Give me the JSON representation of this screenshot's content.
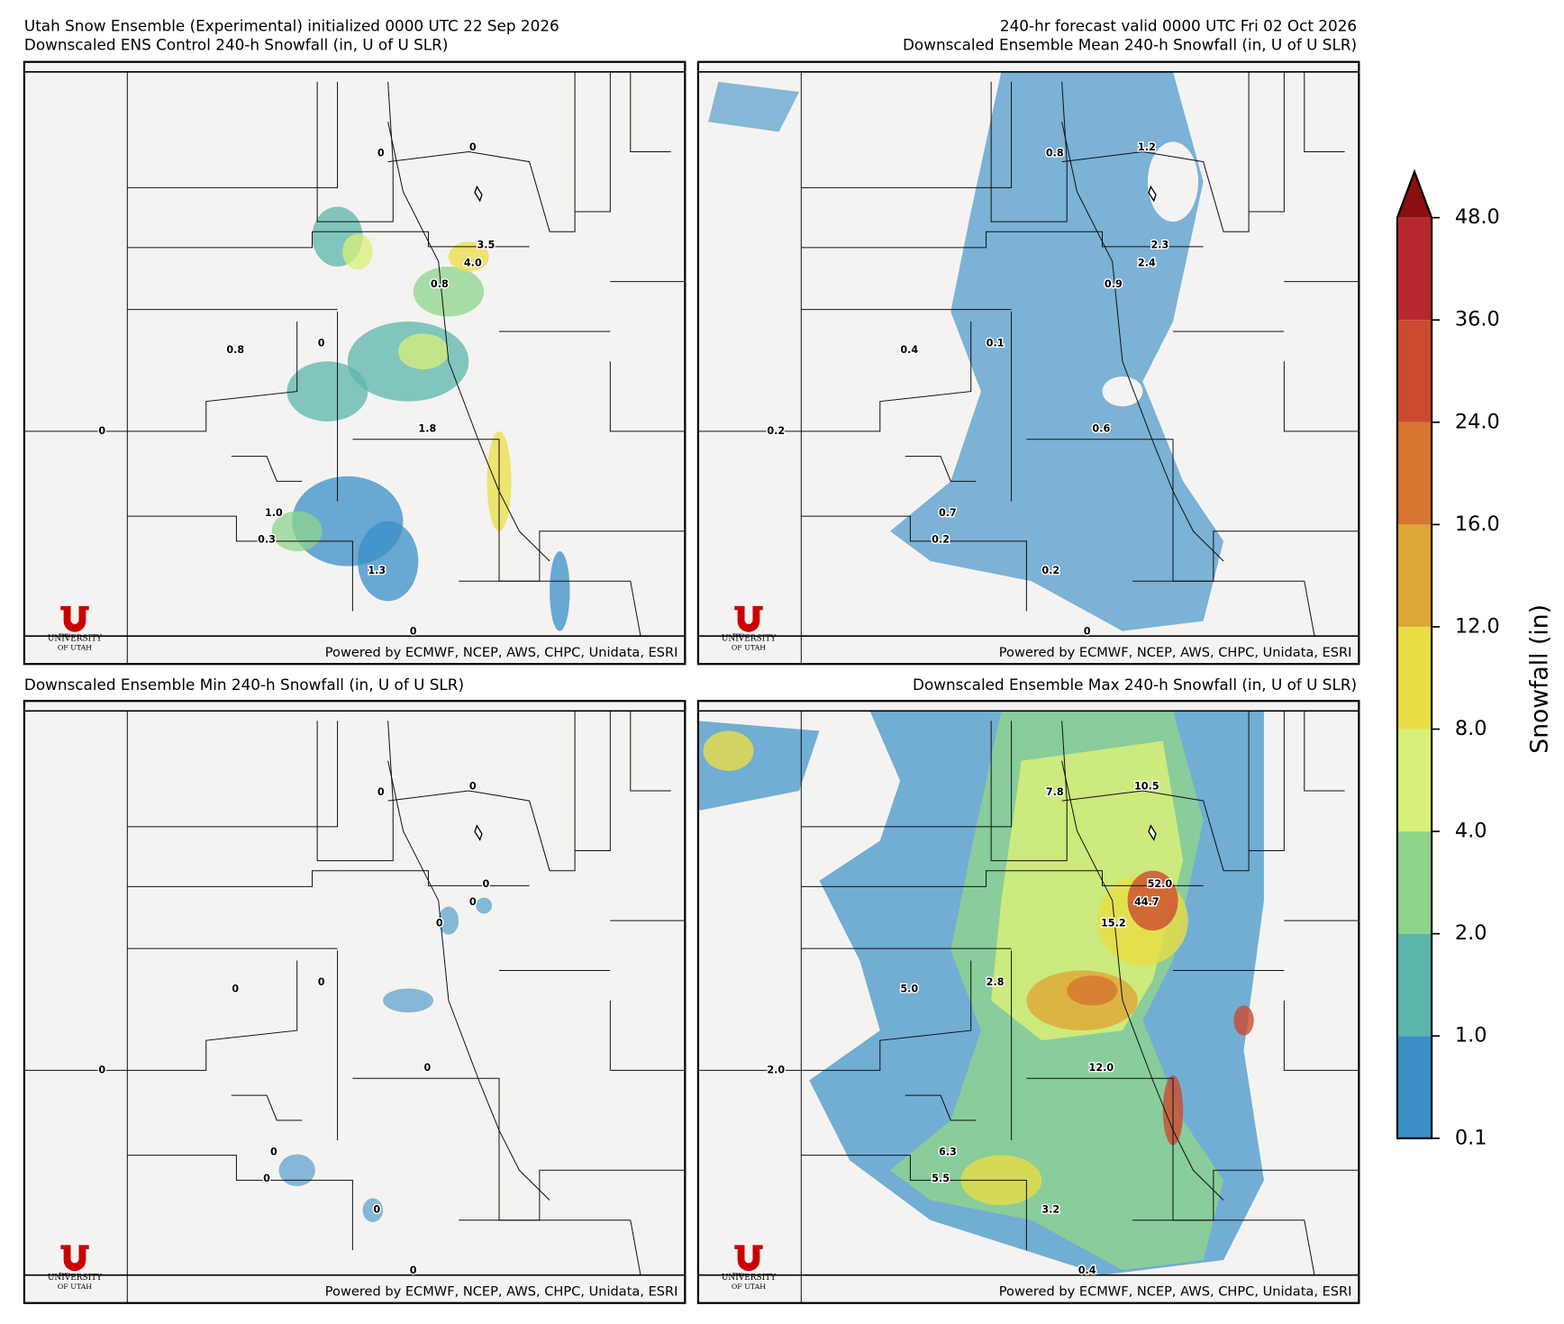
{
  "header": {
    "left": "Utah Snow Ensemble (Experimental) initialized 0000 UTC 22 Sep 2026",
    "right": "240-hr forecast valid 0000 UTC Fri 02 Oct 2026"
  },
  "panels": [
    {
      "title": "Downscaled ENS Control 240-h Snowfall (in, U of U SLR)",
      "labels": [
        "0",
        "0",
        "3.5",
        "4.0",
        "0.8",
        "0.8",
        "0",
        "0",
        "1.8",
        "1.0",
        "0.3",
        "1.3",
        "0"
      ]
    },
    {
      "title": "Downscaled Ensemble Mean 240-h Snowfall (in, U of U SLR)",
      "labels": [
        "0.8",
        "1.2",
        "2.3",
        "2.4",
        "0.9",
        "0.4",
        "0.1",
        "0.2",
        "0.6",
        "0.7",
        "0.2",
        "0.2",
        "0"
      ]
    },
    {
      "title": "Downscaled Ensemble Min 240-h Snowfall (in, U of U SLR)",
      "labels": [
        "0",
        "0",
        "0",
        "0",
        "0",
        "0",
        "0",
        "0",
        "0",
        "0",
        "0",
        "0",
        "0"
      ]
    },
    {
      "title": "Downscaled Ensemble Max 240-h Snowfall (in, U of U SLR)",
      "labels": [
        "7.8",
        "10.5",
        "52.0",
        "44.7",
        "15.2",
        "5.0",
        "2.8",
        "2.0",
        "12.0",
        "6.3",
        "5.5",
        "3.2",
        "0.4"
      ]
    }
  ],
  "credit": "Powered by ECMWF, NCEP, AWS, CHPC, Unidata, ESRI",
  "logo": {
    "the": "THE",
    "name": "UNIVERSITY",
    "state": "OF UTAH"
  },
  "colorbar": {
    "label": "Snowfall (in)",
    "ticks": [
      "0.1",
      "1.0",
      "2.0",
      "4.0",
      "8.0",
      "12.0",
      "16.0",
      "24.0",
      "36.0",
      "48.0"
    ],
    "colors": [
      "#3a8fc7",
      "#5bb5ab",
      "#8fd48c",
      "#d8ef78",
      "#e9dd45",
      "#dea634",
      "#d6752f",
      "#cc4a2f",
      "#b8282e"
    ],
    "extend_color": "#8b0f0f"
  }
}
